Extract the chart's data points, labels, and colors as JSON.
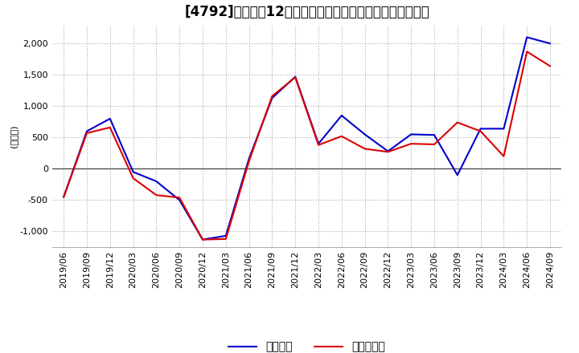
{
  "title": "[4792]　利益だ12か月移動合計の対前年同期増減額の推移",
  "ylabel": "(百万円)",
  "ylim": [
    -1250,
    2300
  ],
  "yticks": [
    -1000,
    -500,
    0,
    500,
    1000,
    1500,
    2000
  ],
  "legend_labels": [
    "経常利益",
    "当期純利益"
  ],
  "line_colors": [
    "#0000cc",
    "#dd0000"
  ],
  "dates": [
    "2019/06",
    "2019/09",
    "2019/12",
    "2020/03",
    "2020/06",
    "2020/09",
    "2020/12",
    "2021/03",
    "2021/06",
    "2021/09",
    "2021/12",
    "2022/03",
    "2022/06",
    "2022/09",
    "2022/12",
    "2023/03",
    "2023/06",
    "2023/09",
    "2023/12",
    "2024/03",
    "2024/06",
    "2024/09"
  ],
  "series1": [
    -450,
    600,
    800,
    -50,
    -200,
    -500,
    -1130,
    -1070,
    160,
    1130,
    1470,
    400,
    850,
    550,
    280,
    550,
    540,
    -100,
    640,
    640,
    2100,
    2000
  ],
  "series2": [
    -450,
    570,
    660,
    -150,
    -420,
    -460,
    -1130,
    -1120,
    120,
    1160,
    1460,
    380,
    520,
    320,
    270,
    400,
    390,
    740,
    600,
    200,
    1870,
    1640
  ],
  "background_color": "#ffffff",
  "grid_color": "#aaaaaa",
  "title_fontsize": 12,
  "tick_fontsize": 8,
  "ylabel_fontsize": 8,
  "legend_fontsize": 10
}
